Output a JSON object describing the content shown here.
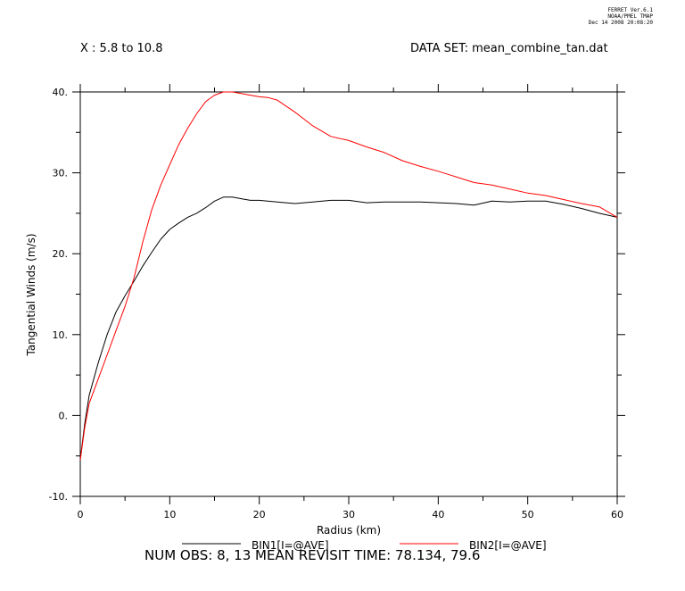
{
  "header": {
    "ferret_lines": [
      "FERRET Ver.6.1",
      "NOAA/PMEL TMAP",
      "Dec 14 2008 20:08:20"
    ],
    "x_range": "X : 5.8 to 10.8",
    "dataset": "DATA SET: mean_combine_tan.dat"
  },
  "footer": {
    "text": "NUM OBS: 8, 13 MEAN REVISIT TIME: 78.134, 79.6"
  },
  "chart_data": {
    "type": "line",
    "title": "",
    "xlabel": "Radius (km)",
    "ylabel": "Tangential Winds (m/s)",
    "xlim": [
      0,
      60
    ],
    "ylim": [
      -10,
      40
    ],
    "x_ticks": [
      0,
      10,
      20,
      30,
      40,
      50,
      60
    ],
    "x_tick_labels": [
      "0",
      "10",
      "20",
      "30",
      "40",
      "50",
      "60"
    ],
    "y_ticks": [
      -10,
      0,
      10,
      20,
      30,
      40
    ],
    "y_tick_labels": [
      "-10.",
      "0.",
      "10.",
      "20.",
      "30.",
      "40."
    ],
    "grid": false,
    "legend": "bottom",
    "series": [
      {
        "name": "BIN1[I=@AVE]",
        "color": "#000000",
        "x": [
          0,
          0.5,
          1,
          2,
          3,
          4,
          5,
          6,
          7,
          8,
          9,
          10,
          11,
          12,
          13,
          14,
          15,
          16,
          17,
          18,
          19,
          20,
          22,
          24,
          26,
          28,
          30,
          32,
          34,
          36,
          38,
          40,
          42,
          44,
          46,
          48,
          50,
          52,
          54,
          56,
          58,
          60
        ],
        "values": [
          -5.5,
          -1,
          2.5,
          6.5,
          10,
          12.8,
          14.8,
          16.6,
          18.5,
          20.2,
          21.8,
          23,
          23.8,
          24.5,
          25,
          25.7,
          26.5,
          27,
          27,
          26.8,
          26.6,
          26.6,
          26.4,
          26.2,
          26.4,
          26.6,
          26.6,
          26.3,
          26.4,
          26.4,
          26.4,
          26.3,
          26.2,
          26.0,
          26.5,
          26.4,
          26.5,
          26.5,
          26.1,
          25.6,
          25.0,
          24.5
        ]
      },
      {
        "name": "BIN2[I=@AVE]",
        "color": "#ff0000",
        "x": [
          0,
          0.5,
          1,
          2,
          3,
          4,
          5,
          6,
          7,
          8,
          9,
          10,
          11,
          12,
          13,
          14,
          15,
          16,
          17,
          18,
          19,
          20,
          21,
          22,
          24,
          26,
          28,
          30,
          32,
          34,
          36,
          38,
          40,
          42,
          44,
          46,
          48,
          50,
          52,
          54,
          56,
          58,
          60
        ],
        "values": [
          -5.5,
          -1.5,
          1.5,
          4.5,
          7.5,
          10.5,
          13.5,
          17,
          21.5,
          25.5,
          28.5,
          31,
          33.5,
          35.5,
          37.3,
          38.8,
          39.6,
          40,
          40,
          39.8,
          39.6,
          39.4,
          39.3,
          39,
          37.5,
          35.8,
          34.5,
          34,
          33.2,
          32.5,
          31.5,
          30.8,
          30.2,
          29.5,
          28.8,
          28.5,
          28,
          27.5,
          27.2,
          26.7,
          26.2,
          25.8,
          24.5
        ]
      }
    ]
  }
}
